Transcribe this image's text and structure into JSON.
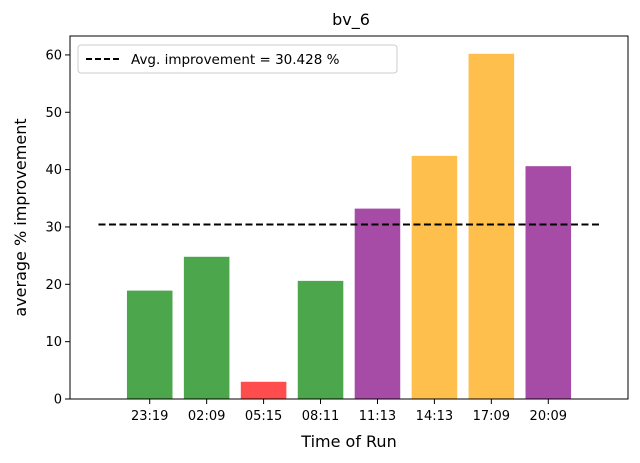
{
  "chart_data": {
    "type": "bar",
    "title": "bv_6",
    "xlabel": "Time of Run",
    "ylabel": "average % improvement",
    "categories": [
      "23:19",
      "02:09",
      "05:15",
      "08:11",
      "11:13",
      "14:13",
      "17:09",
      "20:09"
    ],
    "values": [
      18.9,
      24.8,
      3.0,
      20.6,
      33.2,
      42.4,
      60.2,
      40.6
    ],
    "bar_colors": [
      "#4ca64c",
      "#4ca64c",
      "#ff4c4c",
      "#4ca64c",
      "#a64ca6",
      "#ffbf4c",
      "#ffbf4c",
      "#a64ca6"
    ],
    "ylim": [
      0,
      63.3
    ],
    "yticks": [
      0,
      10,
      20,
      30,
      40,
      50,
      60
    ],
    "reference_line": {
      "value": 30.428,
      "style": "dashed",
      "color": "#000000"
    },
    "legend": {
      "location": "top-left",
      "entries": [
        "Avg. improvement = 30.428 %"
      ]
    },
    "grid": false
  }
}
